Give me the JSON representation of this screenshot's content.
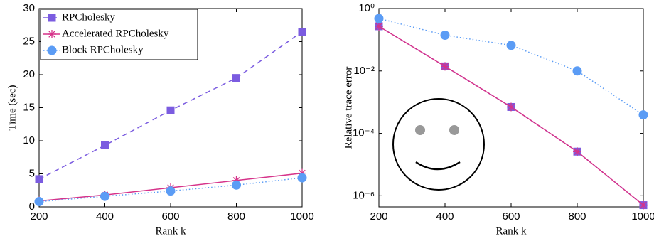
{
  "chart_data": [
    {
      "type": "line",
      "xlabel": "Rank k",
      "ylabel": "Time (sec)",
      "x": [
        200,
        400,
        600,
        800,
        1000
      ],
      "xlim": [
        200,
        1000
      ],
      "xticks": [
        200,
        400,
        600,
        800,
        1000
      ],
      "ylim": [
        0,
        30
      ],
      "yticks": [
        0,
        5,
        10,
        15,
        20,
        25,
        30
      ],
      "legend": "upper left",
      "series": [
        {
          "name": "RPCholesky",
          "color": "#7b5ce0",
          "marker": "square",
          "linestyle": "dashed",
          "values": [
            4.2,
            9.3,
            14.6,
            19.5,
            26.5
          ]
        },
        {
          "name": "Accelerated RPCholesky",
          "color": "#d6338a",
          "marker": "asterisk",
          "linestyle": "solid",
          "values": [
            0.9,
            1.8,
            2.9,
            4.0,
            5.1
          ]
        },
        {
          "name": "Block RPCholesky",
          "color": "#5b9cf5",
          "marker": "circle",
          "linestyle": "dotted",
          "values": [
            0.8,
            1.6,
            2.4,
            3.3,
            4.4
          ]
        }
      ]
    },
    {
      "type": "line",
      "xlabel": "Rank k",
      "ylabel": "Relative trace error",
      "yscale": "log",
      "x": [
        200,
        400,
        600,
        800,
        1000
      ],
      "xlim": [
        200,
        1000
      ],
      "xticks": [
        200,
        400,
        600,
        800,
        1000
      ],
      "ylim": [
        4.4e-07,
        1
      ],
      "yticks": [
        {
          "value": 1,
          "label": "10⁰"
        },
        {
          "value": 0.01,
          "label": "10⁻²"
        },
        {
          "value": 0.0001,
          "label": "10⁻⁴"
        },
        {
          "value": 1e-06,
          "label": "10⁻⁶"
        }
      ],
      "series": [
        {
          "color": "#7b5ce0",
          "marker": "square",
          "linestyle": "dashed",
          "values": [
            0.27,
            0.014,
            0.0007,
            2.6e-05,
            5e-07
          ]
        },
        {
          "color": "#d6338a",
          "marker": "asterisk",
          "linestyle": "solid",
          "values": [
            0.27,
            0.014,
            0.0007,
            2.6e-05,
            5e-07
          ]
        },
        {
          "color": "#5b9cf5",
          "marker": "circle",
          "linestyle": "dotted",
          "values": [
            0.48,
            0.14,
            0.066,
            0.01,
            0.00039
          ]
        }
      ]
    }
  ]
}
